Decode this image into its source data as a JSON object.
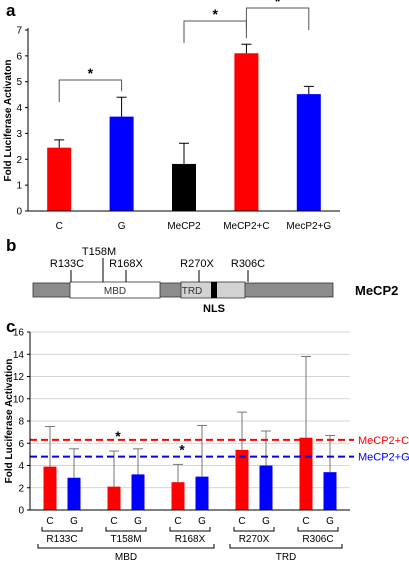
{
  "panels": {
    "a": "a",
    "b": "b",
    "c": "c"
  },
  "colors": {
    "c": "#ff0000",
    "g": "#0000ff",
    "mecp2": "#000000",
    "axis": "#000000",
    "grid": "#c8c8c8"
  },
  "chart_data": [
    {
      "type": "bar",
      "panel": "a",
      "ylabel": "Fold Luciferase Activaton",
      "ylim": [
        0,
        7
      ],
      "yticks": [
        "0",
        "1",
        "2",
        "3",
        "4",
        "5",
        "6",
        "7"
      ],
      "categories": [
        "C",
        "G",
        "MeCP2",
        "MeCP2+C",
        "MecP2+G"
      ],
      "values": [
        2.45,
        3.65,
        1.82,
        6.1,
        4.52
      ],
      "errors": [
        0.3,
        0.75,
        0.8,
        0.35,
        0.3
      ],
      "bar_colors": [
        "#ff0000",
        "#0000ff",
        "#000000",
        "#ff0000",
        "#0000ff"
      ],
      "significance": [
        {
          "from": "C",
          "to": "G",
          "label": "*"
        },
        {
          "from": "MeCP2",
          "to": "MeCP2+C",
          "label": "*"
        },
        {
          "from": "MeCP2+C",
          "to": "MecP2+G",
          "label": "*"
        }
      ],
      "grid": false
    },
    {
      "type": "bar",
      "panel": "c",
      "ylabel": "Fold Luciferase Activation",
      "ylim": [
        0,
        16
      ],
      "yticks": [
        "0",
        "2",
        "4",
        "6",
        "8",
        "10",
        "12",
        "14",
        "16"
      ],
      "groups": [
        "R133C",
        "T158M",
        "R168X",
        "R270X",
        "R306C"
      ],
      "series": [
        {
          "name": "C",
          "values": [
            3.9,
            2.1,
            2.5,
            5.4,
            6.5
          ],
          "errors": [
            3.6,
            3.2,
            1.6,
            3.4,
            7.3
          ]
        },
        {
          "name": "G",
          "values": [
            2.9,
            3.2,
            3.0,
            4.0,
            3.4
          ],
          "errors": [
            2.6,
            2.3,
            4.6,
            3.1,
            3.3
          ]
        }
      ],
      "stars": [
        {
          "group": "T158M",
          "label": "*"
        },
        {
          "group": "R168X",
          "label": "*"
        }
      ],
      "reference_lines": [
        {
          "name": "MeCP2+C",
          "value": 6.3,
          "color": "#ff0000"
        },
        {
          "name": "MeCP2+G",
          "value": 4.8,
          "color": "#0000ff"
        }
      ],
      "domains": [
        {
          "label": "MBD",
          "groups": [
            "R133C",
            "T158M",
            "R168X"
          ]
        },
        {
          "label": "TRD",
          "groups": [
            "R270X",
            "R306C"
          ]
        }
      ],
      "grid": true
    }
  ],
  "diagram": {
    "protein": "MeCP2",
    "domains": [
      "MBD",
      "TRD"
    ],
    "nls": "NLS",
    "mutations": [
      "R133C",
      "T158M",
      "R168X",
      "R270X",
      "R306C"
    ]
  }
}
